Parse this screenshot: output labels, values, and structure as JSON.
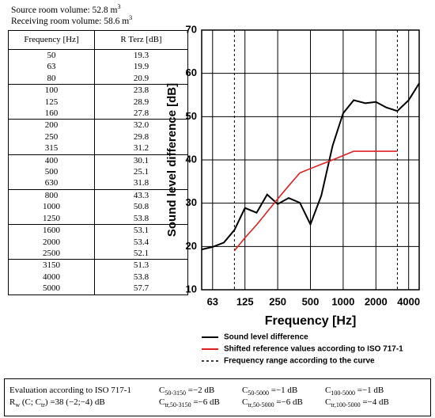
{
  "source_volume": [
    "Source room volume: 52.8 m",
    "3"
  ],
  "receiving_volume": [
    "Receiving room volume: 58.6 m",
    "3"
  ],
  "table": {
    "header": [
      "Frequency  [Hz]",
      "R Terz [dB]"
    ],
    "rows": [
      [
        "50",
        "19.3"
      ],
      [
        "63",
        "19.9"
      ],
      [
        "80",
        "20.9"
      ],
      [
        "100",
        "23.8"
      ],
      [
        "125",
        "28.9"
      ],
      [
        "160",
        "27.8"
      ],
      [
        "200",
        "32.0"
      ],
      [
        "250",
        "29.8"
      ],
      [
        "315",
        "31.2"
      ],
      [
        "400",
        "30.1"
      ],
      [
        "500",
        "25.1"
      ],
      [
        "630",
        "31.8"
      ],
      [
        "800",
        "43.3"
      ],
      [
        "1000",
        "50.8"
      ],
      [
        "1250",
        "53.8"
      ],
      [
        "1600",
        "53.1"
      ],
      [
        "2000",
        "53.4"
      ],
      [
        "2500",
        "52.1"
      ],
      [
        "3150",
        "51.3"
      ],
      [
        "4000",
        "53.8"
      ],
      [
        "5000",
        "57.7"
      ]
    ]
  },
  "chart_data": {
    "type": "line",
    "x_label": "Frequency [Hz]",
    "y_label": "Sound level difference [dB]",
    "xscale": "log",
    "grid": true,
    "x": [
      50,
      63,
      80,
      100,
      125,
      160,
      200,
      250,
      315,
      400,
      500,
      630,
      800,
      1000,
      1250,
      1600,
      2000,
      2500,
      3150,
      4000,
      5000
    ],
    "series": [
      {
        "name": "Sound level difference",
        "color": "#000000",
        "values": [
          19.3,
          19.9,
          20.9,
          23.8,
          28.9,
          27.8,
          32.0,
          29.8,
          31.2,
          30.1,
          25.1,
          31.8,
          43.3,
          50.8,
          53.8,
          53.1,
          53.4,
          52.1,
          51.3,
          53.8,
          57.7
        ]
      },
      {
        "name": "Shifted reference values according to ISO 717-1",
        "color": "#e02020",
        "values": [
          null,
          null,
          null,
          19,
          22,
          25,
          28,
          31,
          34,
          37,
          38,
          39,
          40,
          41,
          42,
          42,
          42,
          42,
          42,
          null,
          null
        ]
      }
    ],
    "range": {
      "name": "Frequency range according to the curve",
      "x": [
        100,
        3150
      ]
    },
    "xlim": [
      50,
      5000
    ],
    "xticks": [
      63,
      125,
      250,
      500,
      1000,
      2000,
      4000
    ],
    "ylim": [
      10,
      70
    ],
    "yticks": [
      10,
      20,
      30,
      40,
      50,
      60,
      70
    ]
  },
  "evaluation": {
    "title": "Evaluation according to ISO 717-1",
    "rw": [
      "R",
      "w",
      " (C; C",
      "tr",
      ") =38 (−2;−4) dB"
    ],
    "terms": [
      [
        "C",
        "50-3150",
        " =−2 dB"
      ],
      [
        "C",
        "50-5000",
        " =−1 dB"
      ],
      [
        "C",
        "100-5000",
        " =−1 dB"
      ],
      [
        "C",
        "tr,50-3150",
        " =−6 dB"
      ],
      [
        "C",
        "tr,50-5000",
        " =−6 dB"
      ],
      [
        "C",
        "tr,100-5000",
        " =−4 dB"
      ]
    ]
  }
}
